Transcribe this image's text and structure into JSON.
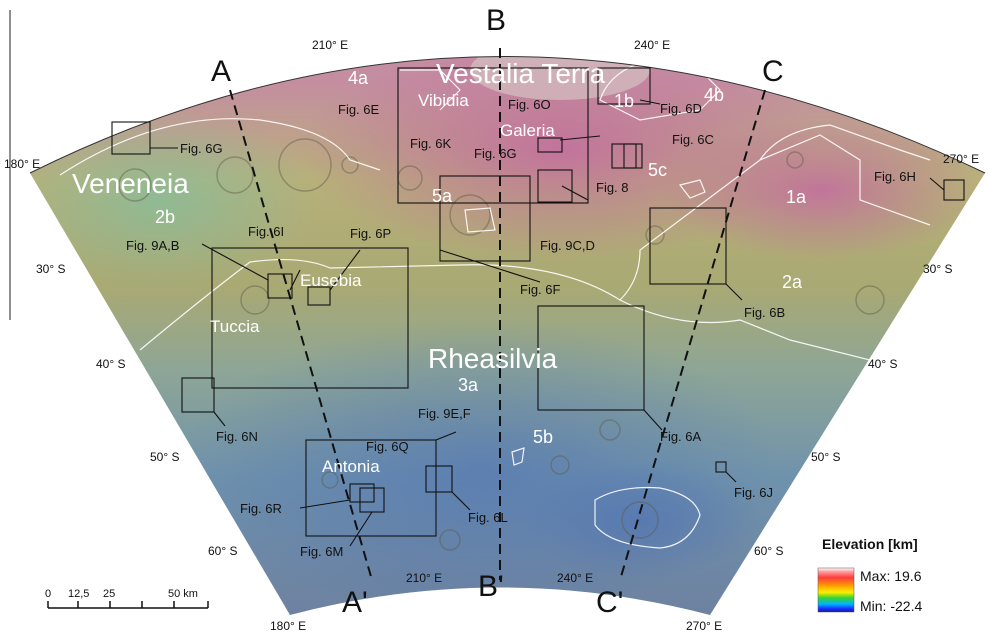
{
  "grid": {
    "lon_top": [
      "210° E",
      "240° E"
    ],
    "lon_bottom": [
      "180° E",
      "210° E",
      "240° E",
      "270° E"
    ],
    "lon_sides": [
      "180° E",
      "270° E"
    ],
    "lat_left": [
      "30° S",
      "40° S",
      "50° S",
      "60° S"
    ],
    "lat_right": [
      "30° S",
      "40° S",
      "50° S",
      "60° S"
    ]
  },
  "regions": {
    "vestalia_terra": "Vestalia Terra",
    "veneneia": "Veneneia",
    "rheasilvia": "Rheasilvia",
    "vibidia": "Vibidia",
    "galeria": "Galeria",
    "eusebia": "Eusebia",
    "tuccia": "Tuccia",
    "antonia": "Antonia"
  },
  "units": {
    "u4a": "4a",
    "u4b": "4b",
    "u1b": "1b",
    "u5c": "5c",
    "u1a": "1a",
    "u2a": "2a",
    "u2b": "2b",
    "u5a": "5a",
    "u3a": "3a",
    "u5b": "5b"
  },
  "profiles": {
    "a": "A",
    "b": "B",
    "c": "C",
    "a_prime": "A'",
    "b_prime": "B'",
    "c_prime": "C'"
  },
  "figures": {
    "f6e": "Fig. 6E",
    "f6k": "Fig. 6K",
    "f6o": "Fig. 6O",
    "f6d": "Fig. 6D",
    "f6c": "Fig. 6C",
    "f6g_left": "Fig. 6G",
    "f6g_center": "Fig. 6G",
    "f8": "Fig. 8",
    "f6h": "Fig. 6H",
    "f9cd": "Fig. 9C,D",
    "f6i": "Fig. 6I",
    "f6p": "Fig. 6P",
    "f9ab": "Fig. 9A,B",
    "f6f": "Fig. 6F",
    "f6b": "Fig. 6B",
    "f6n": "Fig. 6N",
    "f9ef": "Fig. 9E,F",
    "f6q": "Fig. 6Q",
    "f6a": "Fig. 6A",
    "f6r": "Fig. 6R",
    "f6m": "Fig. 6M",
    "f6l": "Fig. 6L",
    "f6j": "Fig. 6J"
  },
  "legend": {
    "title": "Elevation [km]",
    "max": "Max: 19.6",
    "min": "Min: -22.4",
    "colors": [
      "#ffffff",
      "#ff3b3b",
      "#ff9d00",
      "#ffee00",
      "#35d335",
      "#00b4ff",
      "#1d2bff",
      "#101a8c"
    ]
  },
  "scale_bar": {
    "ticks": [
      "0",
      "12,5",
      "25",
      "50 km"
    ]
  },
  "colors": {
    "surface_warm": "#b3a86a",
    "surface_cool": "#6f8fa6",
    "surface_pink": "#c07a9a",
    "boundary": "#ffffff",
    "box": "#111111"
  }
}
